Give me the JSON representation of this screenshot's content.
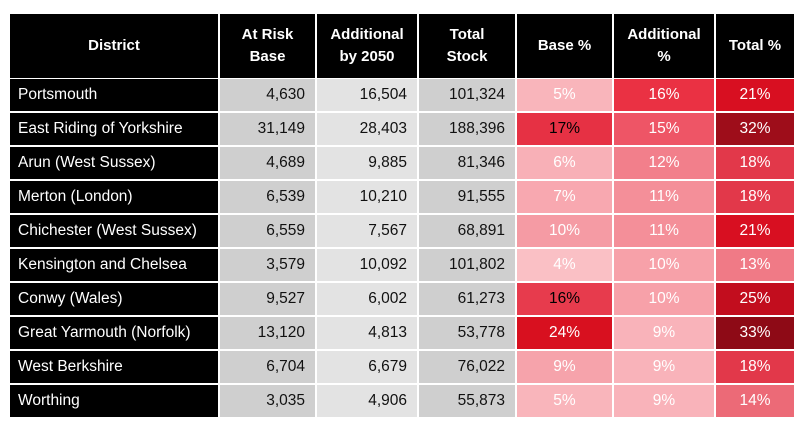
{
  "columns": [
    "District",
    "At Risk Base",
    "Additional by 2050",
    "Total Stock",
    "Base %",
    "Additional %",
    "Total %"
  ],
  "header_lines": [
    [
      "District"
    ],
    [
      "At Risk",
      "Base"
    ],
    [
      "Additional",
      "by 2050"
    ],
    [
      "Total",
      "Stock"
    ],
    [
      "Base %"
    ],
    [
      "Additional",
      "%"
    ],
    [
      "Total %"
    ]
  ],
  "rows": [
    {
      "district": "Portsmouth",
      "base": "4,630",
      "additional": "16,504",
      "total_stock": "101,324",
      "base_pct": {
        "text": "5%",
        "bg": "#f9b5bb",
        "fg": "#ffffff"
      },
      "add_pct": {
        "text": "16%",
        "bg": "#ea3143",
        "fg": "#ffffff"
      },
      "total_pct": {
        "text": "21%",
        "bg": "#d80f21",
        "fg": "#ffffff"
      }
    },
    {
      "district": "East Riding of Yorkshire",
      "base": "31,149",
      "additional": "28,403",
      "total_stock": "188,396",
      "base_pct": {
        "text": "17%",
        "bg": "#e63144",
        "fg": "#000000"
      },
      "add_pct": {
        "text": "15%",
        "bg": "#ee5566",
        "fg": "#ffffff"
      },
      "total_pct": {
        "text": "32%",
        "bg": "#9e0d1a",
        "fg": "#ffffff"
      }
    },
    {
      "district": "Arun (West Sussex)",
      "base": "4,689",
      "additional": "9,885",
      "total_stock": "81,346",
      "base_pct": {
        "text": "6%",
        "bg": "#f8b0b7",
        "fg": "#ffffff"
      },
      "add_pct": {
        "text": "12%",
        "bg": "#f27f8b",
        "fg": "#ffffff"
      },
      "total_pct": {
        "text": "18%",
        "bg": "#e2384a",
        "fg": "#ffffff"
      }
    },
    {
      "district": "Merton (London)",
      "base": "6,539",
      "additional": "10,210",
      "total_stock": "91,555",
      "base_pct": {
        "text": "7%",
        "bg": "#f8a8b0",
        "fg": "#ffffff"
      },
      "add_pct": {
        "text": "11%",
        "bg": "#f48f99",
        "fg": "#ffffff"
      },
      "total_pct": {
        "text": "18%",
        "bg": "#e2384a",
        "fg": "#ffffff"
      }
    },
    {
      "district": "Chichester (West Sussex)",
      "base": "6,559",
      "additional": "7,567",
      "total_stock": "68,891",
      "base_pct": {
        "text": "10%",
        "bg": "#f59ba4",
        "fg": "#ffffff"
      },
      "add_pct": {
        "text": "11%",
        "bg": "#f48f99",
        "fg": "#ffffff"
      },
      "total_pct": {
        "text": "21%",
        "bg": "#d80f21",
        "fg": "#ffffff"
      }
    },
    {
      "district": "Kensington and Chelsea",
      "base": "3,579",
      "additional": "10,092",
      "total_stock": "101,802",
      "base_pct": {
        "text": "4%",
        "bg": "#fac0c5",
        "fg": "#ffffff"
      },
      "add_pct": {
        "text": "10%",
        "bg": "#f7a1a9",
        "fg": "#ffffff"
      },
      "total_pct": {
        "text": "13%",
        "bg": "#f07a86",
        "fg": "#ffffff"
      }
    },
    {
      "district": "Conwy (Wales)",
      "base": "9,527",
      "additional": "6,002",
      "total_stock": "61,273",
      "base_pct": {
        "text": "16%",
        "bg": "#e73b4d",
        "fg": "#000000"
      },
      "add_pct": {
        "text": "10%",
        "bg": "#f7a1a9",
        "fg": "#ffffff"
      },
      "total_pct": {
        "text": "25%",
        "bg": "#c20d1e",
        "fg": "#ffffff"
      }
    },
    {
      "district": "Great Yarmouth (Norfolk)",
      "base": "13,120",
      "additional": "4,813",
      "total_stock": "53,778",
      "base_pct": {
        "text": "24%",
        "bg": "#d8101f",
        "fg": "#ffffff"
      },
      "add_pct": {
        "text": "9%",
        "bg": "#f9b3ba",
        "fg": "#ffffff"
      },
      "total_pct": {
        "text": "33%",
        "bg": "#8e0a16",
        "fg": "#ffffff"
      }
    },
    {
      "district": "West Berkshire",
      "base": "6,704",
      "additional": "6,679",
      "total_stock": "76,022",
      "base_pct": {
        "text": "9%",
        "bg": "#f6a3ab",
        "fg": "#ffffff"
      },
      "add_pct": {
        "text": "9%",
        "bg": "#f9b3ba",
        "fg": "#ffffff"
      },
      "total_pct": {
        "text": "18%",
        "bg": "#e2384a",
        "fg": "#ffffff"
      }
    },
    {
      "district": "Worthing",
      "base": "3,035",
      "additional": "4,906",
      "total_stock": "55,873",
      "base_pct": {
        "text": "5%",
        "bg": "#f9b5bb",
        "fg": "#ffffff"
      },
      "add_pct": {
        "text": "9%",
        "bg": "#f9b3ba",
        "fg": "#ffffff"
      },
      "total_pct": {
        "text": "14%",
        "bg": "#ec6a77",
        "fg": "#ffffff"
      }
    }
  ],
  "colors": {
    "header_bg": "#000000",
    "header_fg": "#ffffff",
    "district_bg": "#000000",
    "num_bg_a": "#cfcfcf",
    "num_bg_b": "#e3e3e3"
  }
}
